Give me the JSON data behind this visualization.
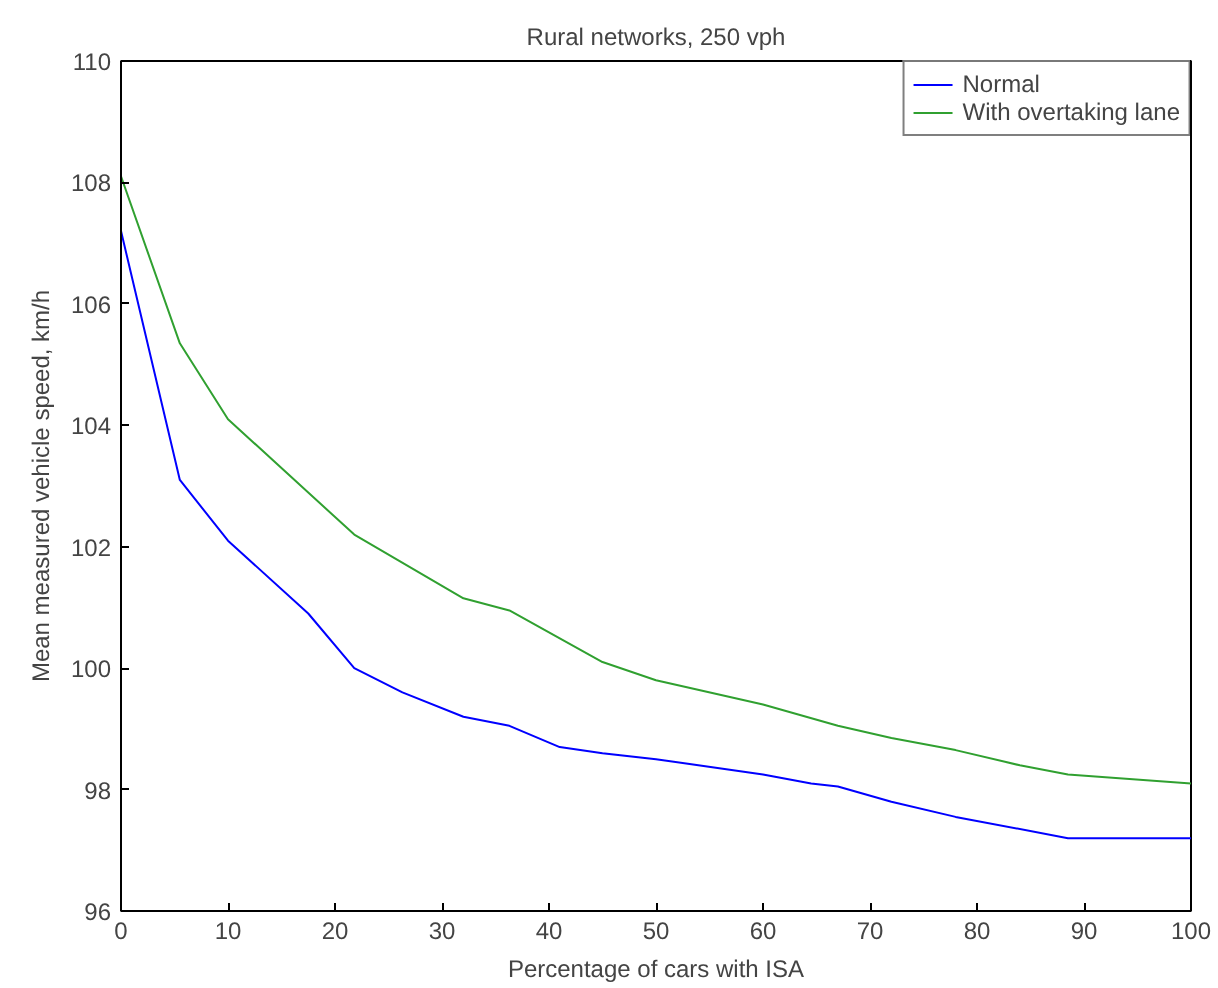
{
  "chart_data": {
    "type": "line",
    "title": "Rural networks, 250 vph",
    "xlabel": "Percentage of cars with ISA",
    "ylabel": "Mean measured vehicle speed, km/h",
    "xlim": [
      0,
      100
    ],
    "ylim": [
      96,
      110
    ],
    "xticks": [
      0,
      10,
      20,
      30,
      40,
      50,
      60,
      70,
      80,
      90,
      100
    ],
    "yticks": [
      96,
      98,
      100,
      102,
      104,
      106,
      108,
      110
    ],
    "grid": false,
    "legend": "top right",
    "marker": "none",
    "line_style": "solid",
    "series": [
      {
        "name": "Normal",
        "color": "#0000ff",
        "x": [
          0,
          5.5,
          10,
          17.5,
          21.8,
          26.3,
          32,
          36.3,
          41,
          45,
          50,
          60,
          64.5,
          67,
          72,
          78,
          88.5,
          100
        ],
        "values": [
          107.2,
          103.1,
          102.1,
          100.9,
          100.0,
          99.6,
          99.2,
          99.05,
          98.7,
          98.6,
          98.5,
          98.25,
          98.1,
          98.05,
          97.8,
          97.55,
          97.2,
          97.2
        ]
      },
      {
        "name": "With overtaking lane",
        "color": "#30a030",
        "x": [
          0,
          5.5,
          10,
          21.8,
          32,
          36.3,
          45,
          50,
          60,
          67,
          72,
          78,
          84,
          88.5,
          100
        ],
        "values": [
          108.1,
          105.35,
          104.1,
          102.2,
          101.15,
          100.95,
          100.1,
          99.8,
          99.4,
          99.05,
          98.85,
          98.65,
          98.4,
          98.25,
          98.1
        ]
      }
    ]
  }
}
